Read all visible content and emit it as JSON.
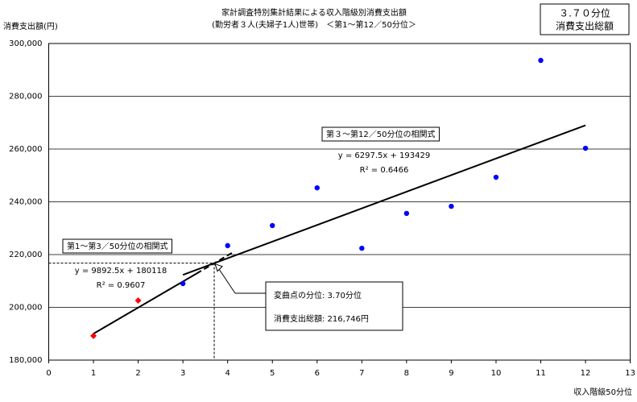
{
  "chart_data": {
    "type": "scatter",
    "title": [
      "家計調査特別集計結果による収入階級別消費支出額",
      "(勤労者３人(夫婦子1人)世帯)　＜第1～第12／50分位＞"
    ],
    "corner_label": [
      "３.７０分位",
      "消費支出総額"
    ],
    "y_label": "消費支出額(円)",
    "x_label": "収入階級50分位",
    "xlim": [
      0,
      13
    ],
    "xticks": [
      0,
      1,
      2,
      3,
      4,
      5,
      6,
      7,
      8,
      9,
      10,
      11,
      12,
      13
    ],
    "ylim": [
      180000,
      300000
    ],
    "yticks": [
      {
        "value": 180000,
        "label": "180,000"
      },
      {
        "value": 200000,
        "label": "200,000"
      },
      {
        "value": 220000,
        "label": "220,000"
      },
      {
        "value": 240000,
        "label": "240,000"
      },
      {
        "value": 260000,
        "label": "260,000"
      },
      {
        "value": 280000,
        "label": "280,000"
      },
      {
        "value": 300000,
        "label": "300,000"
      }
    ],
    "grid": true,
    "series": [
      {
        "color": "#0000ff",
        "marker": "circle",
        "x": [
          3,
          4,
          5,
          6,
          7,
          8,
          9,
          10,
          11,
          12
        ],
        "values": [
          209000,
          223400,
          231000,
          245300,
          222400,
          235600,
          238300,
          249300,
          293600,
          260300
        ]
      },
      {
        "color": "#ff0000",
        "marker": "diamond",
        "x": [
          1,
          2
        ],
        "values": [
          189200,
          202600
        ]
      }
    ],
    "trendlines": [
      {
        "label": "第1～第3／50分位の相関式",
        "equation": "y = 9892.5x + 180118",
        "r2": "R² = 0.9607",
        "solid": {
          "x": [
            1,
            3.3
          ],
          "values": [
            190011,
            212763
          ]
        },
        "dashed": {
          "x": [
            3.3,
            4.1
          ],
          "values": [
            212763,
            220677
          ]
        }
      },
      {
        "label": "第３～第12／50分位の相関式",
        "equation": "y = 6297.5x + 193429",
        "r2": "R² = 0.6466",
        "solid": {
          "x": [
            3,
            12
          ],
          "values": [
            212322,
            269000
          ]
        }
      }
    ],
    "inflection": {
      "x": 3.7,
      "value": 216746,
      "text": [
        "変曲点の分位: 3.70分位",
        "消費支出総額: 216,746円"
      ]
    }
  }
}
